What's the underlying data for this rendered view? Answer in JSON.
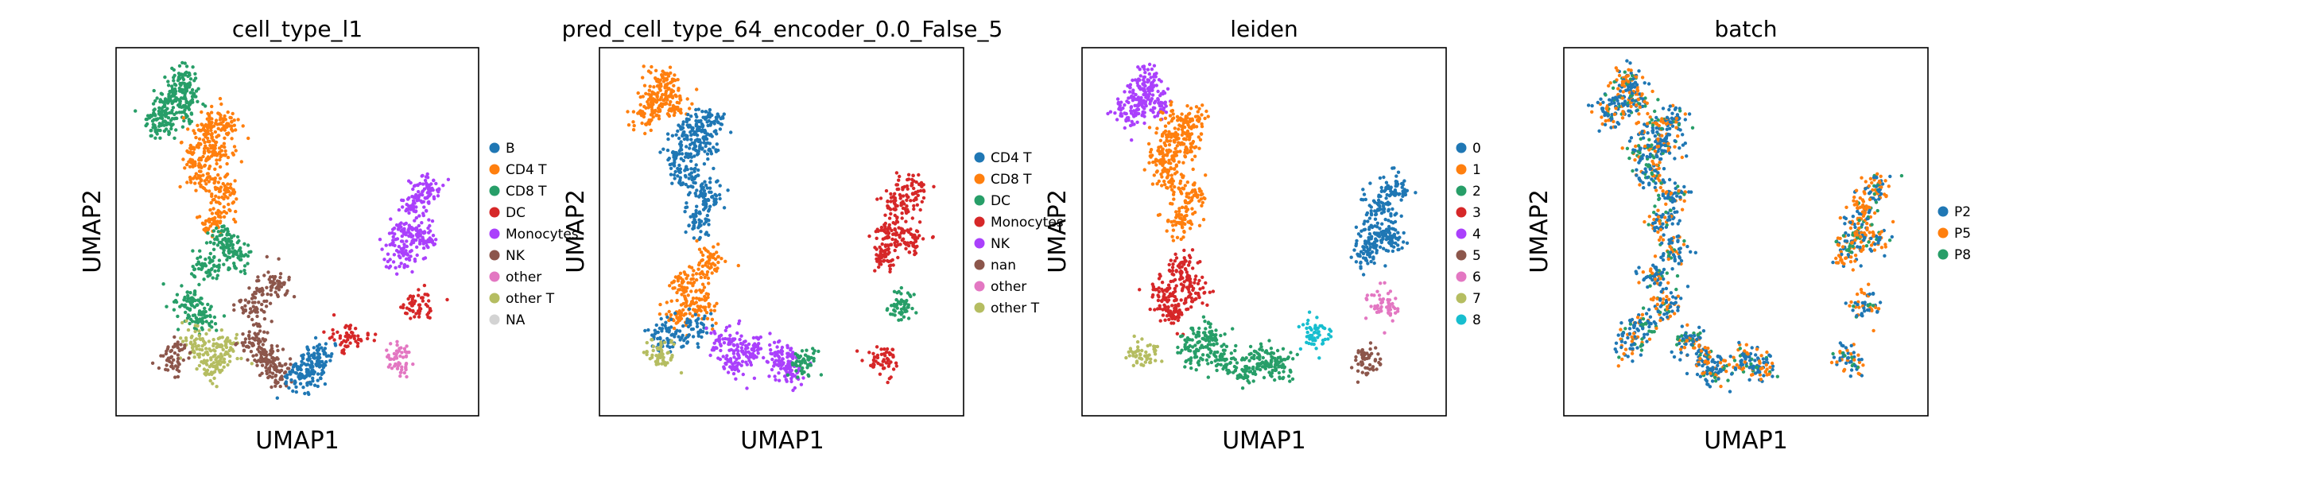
{
  "chart_data": [
    {
      "type": "scatter",
      "title": "cell_type_l1",
      "xlabel": "UMAP1",
      "ylabel": "UMAP2",
      "grid": false,
      "legend_placement": "right",
      "legend": [
        {
          "label": "B",
          "color": "#1f77b4"
        },
        {
          "label": "CD4 T",
          "color": "#ff7f0e"
        },
        {
          "label": "CD8 T",
          "color": "#279e68"
        },
        {
          "label": "DC",
          "color": "#d62728"
        },
        {
          "label": "Monocytes",
          "color": "#aa40fc"
        },
        {
          "label": "NK",
          "color": "#8c564b"
        },
        {
          "label": "other",
          "color": "#e377c2"
        },
        {
          "label": "other T",
          "color": "#b5bd61"
        },
        {
          "label": "NA",
          "color": "#d3d3d3"
        }
      ],
      "clusters": [
        {
          "cat": 2,
          "pts": [
            [
              0.16,
              0.87
            ],
            [
              0.13,
              0.82
            ],
            [
              0.18,
              0.91
            ],
            [
              0.2,
              0.85
            ],
            [
              0.12,
              0.79
            ]
          ]
        },
        {
          "cat": 1,
          "pts": [
            [
              0.28,
              0.73
            ],
            [
              0.24,
              0.65
            ],
            [
              0.3,
              0.6
            ],
            [
              0.27,
              0.53
            ],
            [
              0.25,
              0.78
            ],
            [
              0.3,
              0.8
            ],
            [
              0.22,
              0.71
            ]
          ]
        },
        {
          "cat": 2,
          "pts": [
            [
              0.3,
              0.48
            ],
            [
              0.25,
              0.4
            ],
            [
              0.33,
              0.43
            ]
          ]
        },
        {
          "cat": 2,
          "pts": [
            [
              0.2,
              0.3
            ],
            [
              0.24,
              0.27
            ]
          ]
        },
        {
          "cat": 7,
          "pts": [
            [
              0.3,
              0.18
            ],
            [
              0.22,
              0.2
            ],
            [
              0.26,
              0.14
            ]
          ]
        },
        {
          "cat": 5,
          "pts": [
            [
              0.42,
              0.16
            ],
            [
              0.38,
              0.2
            ],
            [
              0.45,
              0.12
            ],
            [
              0.38,
              0.3
            ],
            [
              0.44,
              0.36
            ]
          ]
        },
        {
          "cat": 5,
          "pts": [
            [
              0.16,
              0.16
            ]
          ]
        },
        {
          "cat": 0,
          "pts": [
            [
              0.54,
              0.13
            ],
            [
              0.51,
              0.1
            ],
            [
              0.56,
              0.16
            ]
          ]
        },
        {
          "cat": 4,
          "pts": [
            [
              0.82,
              0.57
            ],
            [
              0.8,
              0.5
            ],
            [
              0.86,
              0.62
            ],
            [
              0.78,
              0.44
            ],
            [
              0.85,
              0.48
            ]
          ]
        },
        {
          "cat": 3,
          "pts": [
            [
              0.83,
              0.3
            ]
          ]
        },
        {
          "cat": 6,
          "pts": [
            [
              0.78,
              0.15
            ]
          ]
        },
        {
          "cat": 3,
          "pts": [
            [
              0.64,
              0.22
            ]
          ]
        }
      ]
    },
    {
      "type": "scatter",
      "title": "pred_cell_type_64_encoder_0.0_False_5",
      "xlabel": "UMAP1",
      "ylabel": "UMAP2",
      "grid": false,
      "legend_placement": "right",
      "legend": [
        {
          "label": "CD4 T",
          "color": "#1f77b4"
        },
        {
          "label": "CD8 T",
          "color": "#ff7f0e"
        },
        {
          "label": "DC",
          "color": "#279e68"
        },
        {
          "label": "Monocytes",
          "color": "#d62728"
        },
        {
          "label": "NK",
          "color": "#aa40fc"
        },
        {
          "label": "nan",
          "color": "#8c564b"
        },
        {
          "label": "other",
          "color": "#e377c2"
        },
        {
          "label": "other T",
          "color": "#b5bd61"
        }
      ],
      "clusters": [
        {
          "cat": 1,
          "pts": [
            [
              0.16,
              0.87
            ],
            [
              0.13,
              0.82
            ],
            [
              0.18,
              0.91
            ],
            [
              0.2,
              0.85
            ]
          ]
        },
        {
          "cat": 0,
          "pts": [
            [
              0.28,
              0.73
            ],
            [
              0.24,
              0.65
            ],
            [
              0.3,
              0.6
            ],
            [
              0.27,
              0.53
            ],
            [
              0.25,
              0.78
            ],
            [
              0.3,
              0.8
            ],
            [
              0.22,
              0.71
            ]
          ]
        },
        {
          "cat": 1,
          "pts": [
            [
              0.3,
              0.42
            ],
            [
              0.24,
              0.36
            ],
            [
              0.28,
              0.3
            ],
            [
              0.22,
              0.28
            ]
          ]
        },
        {
          "cat": 0,
          "pts": [
            [
              0.18,
              0.22
            ],
            [
              0.26,
              0.24
            ]
          ]
        },
        {
          "cat": 7,
          "pts": [
            [
              0.17,
              0.17
            ]
          ]
        },
        {
          "cat": 4,
          "pts": [
            [
              0.38,
              0.14
            ],
            [
              0.42,
              0.18
            ],
            [
              0.34,
              0.2
            ]
          ]
        },
        {
          "cat": 4,
          "pts": [
            [
              0.52,
              0.12
            ],
            [
              0.5,
              0.16
            ]
          ]
        },
        {
          "cat": 2,
          "pts": [
            [
              0.56,
              0.14
            ]
          ]
        },
        {
          "cat": 3,
          "pts": [
            [
              0.82,
              0.57
            ],
            [
              0.8,
              0.5
            ],
            [
              0.86,
              0.62
            ],
            [
              0.78,
              0.44
            ],
            [
              0.85,
              0.48
            ]
          ]
        },
        {
          "cat": 2,
          "pts": [
            [
              0.83,
              0.3
            ]
          ]
        },
        {
          "cat": 3,
          "pts": [
            [
              0.78,
              0.15
            ]
          ]
        }
      ]
    },
    {
      "type": "scatter",
      "title": "leiden",
      "xlabel": "UMAP1",
      "ylabel": "UMAP2",
      "grid": false,
      "legend_placement": "right",
      "legend": [
        {
          "label": "0",
          "color": "#1f77b4"
        },
        {
          "label": "1",
          "color": "#ff7f0e"
        },
        {
          "label": "2",
          "color": "#279e68"
        },
        {
          "label": "3",
          "color": "#d62728"
        },
        {
          "label": "4",
          "color": "#aa40fc"
        },
        {
          "label": "5",
          "color": "#8c564b"
        },
        {
          "label": "6",
          "color": "#e377c2"
        },
        {
          "label": "7",
          "color": "#b5bd61"
        },
        {
          "label": "8",
          "color": "#17becf"
        }
      ],
      "clusters": [
        {
          "cat": 4,
          "pts": [
            [
              0.16,
              0.87
            ],
            [
              0.13,
              0.82
            ],
            [
              0.18,
              0.91
            ],
            [
              0.2,
              0.85
            ]
          ]
        },
        {
          "cat": 1,
          "pts": [
            [
              0.28,
              0.73
            ],
            [
              0.24,
              0.65
            ],
            [
              0.3,
              0.6
            ],
            [
              0.27,
              0.53
            ],
            [
              0.25,
              0.78
            ],
            [
              0.3,
              0.8
            ],
            [
              0.22,
              0.71
            ]
          ]
        },
        {
          "cat": 3,
          "pts": [
            [
              0.27,
              0.4
            ],
            [
              0.22,
              0.33
            ],
            [
              0.3,
              0.34
            ],
            [
              0.25,
              0.28
            ]
          ]
        },
        {
          "cat": 2,
          "pts": [
            [
              0.38,
              0.16
            ],
            [
              0.3,
              0.18
            ],
            [
              0.44,
              0.12
            ],
            [
              0.34,
              0.22
            ],
            [
              0.5,
              0.15
            ],
            [
              0.54,
              0.13
            ]
          ]
        },
        {
          "cat": 7,
          "pts": [
            [
              0.17,
              0.17
            ]
          ]
        },
        {
          "cat": 0,
          "pts": [
            [
              0.82,
              0.57
            ],
            [
              0.8,
              0.5
            ],
            [
              0.86,
              0.62
            ],
            [
              0.78,
              0.44
            ],
            [
              0.85,
              0.48
            ]
          ]
        },
        {
          "cat": 6,
          "pts": [
            [
              0.83,
              0.3
            ]
          ]
        },
        {
          "cat": 5,
          "pts": [
            [
              0.78,
              0.15
            ]
          ]
        },
        {
          "cat": 8,
          "pts": [
            [
              0.64,
              0.22
            ]
          ]
        }
      ]
    },
    {
      "type": "scatter",
      "title": "batch",
      "xlabel": "UMAP1",
      "ylabel": "UMAP2",
      "grid": false,
      "legend_placement": "right",
      "legend": [
        {
          "label": "P2",
          "color": "#1f77b4"
        },
        {
          "label": "P5",
          "color": "#ff7f0e"
        },
        {
          "label": "P8",
          "color": "#279e68"
        }
      ],
      "mixed": true,
      "clusters": [
        {
          "cat": 0,
          "pts": [
            [
              0.16,
              0.87
            ],
            [
              0.13,
              0.82
            ],
            [
              0.18,
              0.91
            ],
            [
              0.2,
              0.85
            ]
          ]
        },
        {
          "cat": 0,
          "pts": [
            [
              0.28,
              0.73
            ],
            [
              0.24,
              0.65
            ],
            [
              0.3,
              0.6
            ],
            [
              0.27,
              0.53
            ],
            [
              0.25,
              0.78
            ],
            [
              0.3,
              0.8
            ],
            [
              0.22,
              0.71
            ]
          ]
        },
        {
          "cat": 0,
          "pts": [
            [
              0.3,
              0.45
            ],
            [
              0.25,
              0.38
            ],
            [
              0.28,
              0.3
            ],
            [
              0.22,
              0.25
            ],
            [
              0.18,
              0.2
            ]
          ]
        },
        {
          "cat": 0,
          "pts": [
            [
              0.38,
              0.16
            ],
            [
              0.42,
              0.12
            ],
            [
              0.34,
              0.2
            ],
            [
              0.5,
              0.15
            ],
            [
              0.54,
              0.13
            ]
          ]
        },
        {
          "cat": 1,
          "pts": [
            [
              0.82,
              0.57
            ],
            [
              0.8,
              0.5
            ],
            [
              0.86,
              0.62
            ],
            [
              0.78,
              0.44
            ],
            [
              0.85,
              0.48
            ]
          ]
        },
        {
          "cat": 0,
          "pts": [
            [
              0.83,
              0.3
            ]
          ]
        },
        {
          "cat": 0,
          "pts": [
            [
              0.78,
              0.15
            ]
          ]
        }
      ]
    }
  ]
}
